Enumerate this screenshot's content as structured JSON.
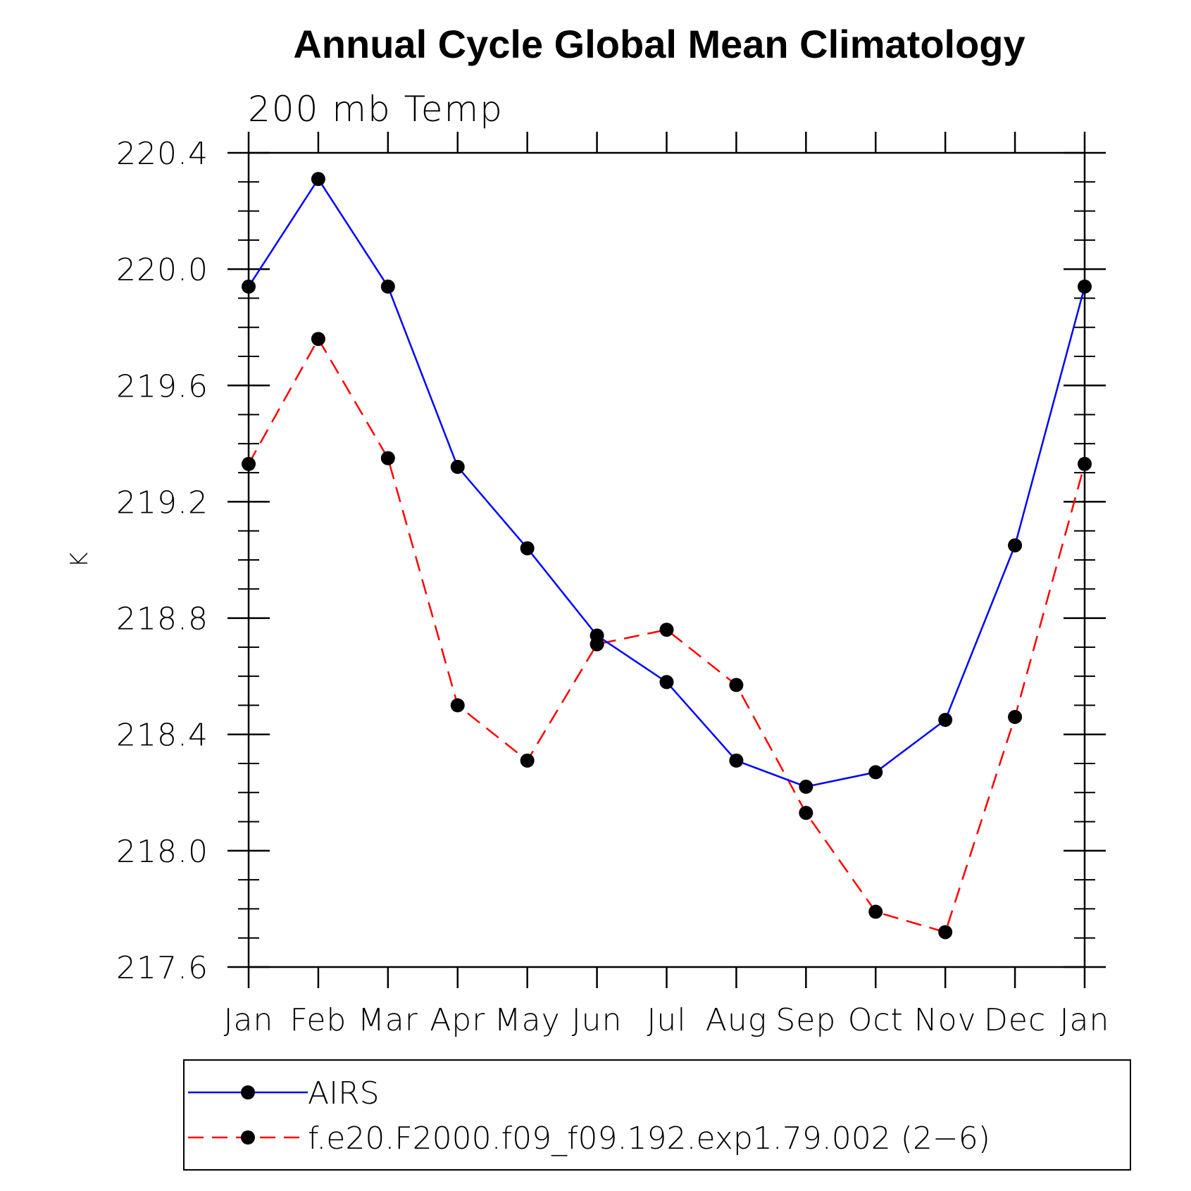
{
  "chart_data": {
    "type": "line",
    "title": "Annual Cycle Global Mean Climatology",
    "subtitle": "200 mb Temp",
    "xlabel": "",
    "ylabel": "K",
    "categories": [
      "Jan",
      "Feb",
      "Mar",
      "Apr",
      "May",
      "Jun",
      "Jul",
      "Aug",
      "Sep",
      "Oct",
      "Nov",
      "Dec",
      "Jan"
    ],
    "ylim": [
      217.6,
      220.4
    ],
    "yticks": [
      217.6,
      218.0,
      218.4,
      218.8,
      219.2,
      219.6,
      220.0,
      220.4
    ],
    "ytick_labels": [
      "217.6",
      "218.0",
      "218.4",
      "218.8",
      "219.2",
      "219.6",
      "220.0",
      "220.4"
    ],
    "grid": false,
    "legend_position": "bottom",
    "series": [
      {
        "name": "AIRS",
        "color": "#0000ff",
        "dash": "solid",
        "marker": "filled-circle",
        "values": [
          219.94,
          220.31,
          219.94,
          219.32,
          219.04,
          218.74,
          218.58,
          218.31,
          218.22,
          218.27,
          218.45,
          219.05,
          219.94
        ]
      },
      {
        "name": "f.e20.F2000.f09_f09.192.exp1.79.002 (2−6)",
        "color": "#ff0000",
        "dash": "dashed",
        "marker": "filled-circle",
        "values": [
          219.33,
          219.76,
          219.35,
          218.5,
          218.31,
          218.71,
          218.76,
          218.57,
          218.13,
          217.79,
          217.72,
          218.46,
          219.33
        ]
      }
    ]
  }
}
